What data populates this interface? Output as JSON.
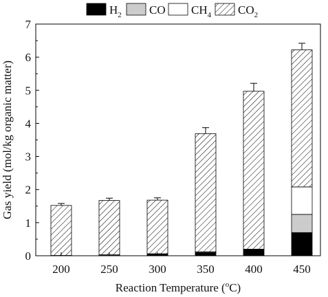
{
  "chart_data": {
    "type": "bar",
    "stacked": true,
    "title": "",
    "xlabel": {
      "text": "Reaction Temperature (",
      "sup": "o",
      "tail": "C)"
    },
    "ylabel": "Gas yield (mol/kg organic matter)",
    "ylim": [
      0,
      7
    ],
    "yticks": [
      "0",
      "1",
      "2",
      "3",
      "4",
      "5",
      "6",
      "7"
    ],
    "categories": [
      "200",
      "250",
      "300",
      "350",
      "400",
      "450"
    ],
    "series": [
      {
        "name": "H",
        "sub": "2",
        "fill": "#000000",
        "pattern": "solid",
        "values": [
          0.01,
          0.01,
          0.05,
          0.08,
          0.2,
          0.7
        ]
      },
      {
        "name": "CO",
        "sub": "",
        "fill": "#cccccc",
        "pattern": "solid",
        "values": [
          0.0,
          0.0,
          0.0,
          0.02,
          0.0,
          0.55
        ]
      },
      {
        "name": "CH",
        "sub": "4",
        "fill": "#ffffff",
        "pattern": "solid",
        "values": [
          0.0,
          0.02,
          0.01,
          0.02,
          0.0,
          0.83
        ]
      },
      {
        "name": "CO",
        "sub": "2",
        "fill": "#ffffff",
        "pattern": "hatch",
        "values": [
          1.51,
          1.64,
          1.62,
          3.57,
          4.77,
          4.14
        ]
      }
    ],
    "errors": [
      0.06,
      0.07,
      0.07,
      0.18,
      0.24,
      0.2
    ],
    "legend": "top"
  }
}
